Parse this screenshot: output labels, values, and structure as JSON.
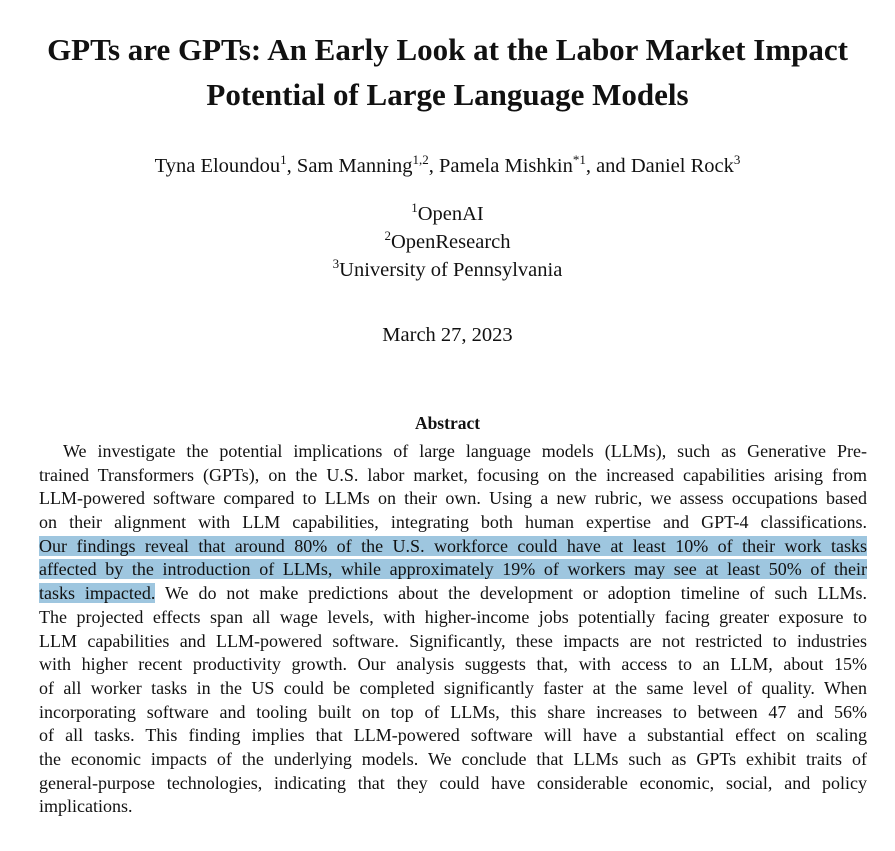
{
  "title": {
    "line1": "GPTs are GPTs:  An Early Look at the Labor Market Impact",
    "line2": "Potential of Large Language Models"
  },
  "authors": [
    {
      "name": "Tyna Eloundou",
      "sup": "1",
      "sep": ", "
    },
    {
      "name": "Sam Manning",
      "sup": "1,2",
      "sep": ", "
    },
    {
      "name": "Pamela Mishkin",
      "sup": "*1",
      "sep": ", and "
    },
    {
      "name": "Daniel Rock",
      "sup": "3",
      "sep": ""
    }
  ],
  "affiliations": [
    {
      "sup": "1",
      "name": "OpenAI"
    },
    {
      "sup": "2",
      "name": "OpenResearch"
    },
    {
      "sup": "3",
      "name": "University of Pennsylvania"
    }
  ],
  "date": "March 27, 2023",
  "abstract": {
    "heading": "Abstract",
    "lines": [
      {
        "pre": "We investigate the potential implications of large language models (LLMs), such as Generative Pre-",
        "hl": "",
        "post": ""
      },
      {
        "pre": "trained Transformers (GPTs), on the U.S. labor market, focusing on the increased capabilities arising from",
        "hl": "",
        "post": ""
      },
      {
        "pre": "LLM-powered software compared to LLMs on their own.  Using a new rubric, we assess occupations based",
        "hl": "",
        "post": ""
      },
      {
        "pre": "on their alignment with LLM capabilities, integrating both human expertise and GPT-4 classifications.",
        "hl": "",
        "post": ""
      },
      {
        "pre": "",
        "hl": "Our findings reveal that around 80% of the U.S. workforce could have at least 10% of their work tasks",
        "post": ""
      },
      {
        "pre": "",
        "hl": "affected by the introduction of LLMs, while approximately 19% of workers may see at least 50% of their",
        "post": ""
      },
      {
        "pre": "",
        "hl": "tasks impacted.",
        "post": " We do not make predictions about the development or adoption timeline of such LLMs."
      },
      {
        "pre": "The projected effects span all wage levels, with higher-income jobs potentially facing greater exposure to",
        "hl": "",
        "post": ""
      },
      {
        "pre": "LLM capabilities and LLM-powered software.  Significantly, these impacts are not restricted to industries",
        "hl": "",
        "post": ""
      },
      {
        "pre": "with higher recent productivity growth.  Our analysis suggests that, with access to an LLM, about 15%",
        "hl": "",
        "post": ""
      },
      {
        "pre": "of all worker tasks in the US could be completed significantly faster at the same level of quality.  When",
        "hl": "",
        "post": ""
      },
      {
        "pre": "incorporating software and tooling built on top of LLMs, this share increases to between 47 and 56%",
        "hl": "",
        "post": ""
      },
      {
        "pre": "of all tasks.  This finding implies that LLM-powered software will have a substantial effect on scaling",
        "hl": "",
        "post": ""
      },
      {
        "pre": "the economic impacts of the underlying models.  We conclude that LLMs such as GPTs exhibit traits of",
        "hl": "",
        "post": ""
      },
      {
        "pre": "general-purpose technologies, indicating that they could have considerable economic, social, and policy",
        "hl": "",
        "post": ""
      },
      {
        "pre": "implications.",
        "hl": "",
        "post": ""
      }
    ]
  },
  "highlight_color": "#9ec6df"
}
